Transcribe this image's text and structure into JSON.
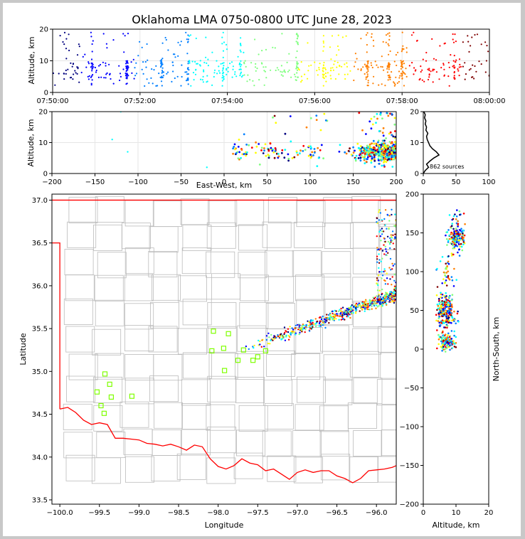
{
  "title": "Oklahoma LMA 0750-0800 UTC June 28, 2023",
  "colormap": [
    "#00007f",
    "#0000ff",
    "#007fff",
    "#00ffff",
    "#7fff7f",
    "#ffff00",
    "#ff7f00",
    "#ff0000",
    "#7f0000"
  ],
  "station_color": "#7fff00",
  "state_border_color": "#ff0000",
  "county_color": "#bbbbbb",
  "chart_data": [
    {
      "id": "time-altitude",
      "type": "scatter",
      "ylabel": "Altitude, km",
      "xlabel": "",
      "ylim": [
        0,
        20
      ],
      "x_ticks": [
        "07:50:00",
        "07:52:00",
        "07:54:00",
        "07:56:00",
        "07:58:00",
        "08:00:00"
      ],
      "y_ticks": [
        "0",
        "10",
        "20"
      ],
      "x_range": [
        "07:50:00",
        "08:00:00"
      ],
      "color_by": "time",
      "grid": true
    },
    {
      "id": "east-west-altitude",
      "type": "scatter",
      "xlabel": "East-West, km",
      "ylabel": "Altitude, km",
      "xlim": [
        -200,
        200
      ],
      "ylim": [
        0,
        20
      ],
      "x_ticks": [
        "−200",
        "−150",
        "−100",
        "−50",
        "0",
        "50",
        "100",
        "150",
        "200"
      ],
      "y_ticks": [
        "0",
        "10",
        "20"
      ],
      "grid": true
    },
    {
      "id": "altitude-histogram",
      "type": "line",
      "xlim": [
        0,
        100
      ],
      "ylim": [
        0,
        20
      ],
      "x_ticks": [
        "0",
        "50",
        "100"
      ],
      "y_ticks": [
        "0",
        "10",
        "20"
      ],
      "annotation": "862 sources",
      "grid": true
    },
    {
      "id": "plan-view",
      "type": "scatter",
      "xlabel": "Longitude",
      "ylabel": "Latitude",
      "xlim": [
        -100.1,
        -95.75
      ],
      "ylim": [
        33.45,
        37.07
      ],
      "x_ticks": [
        "−100.0",
        "−99.5",
        "−99.0",
        "−98.5",
        "−98.0",
        "−97.5",
        "−97.0",
        "−96.5",
        "−96.0"
      ],
      "y_ticks": [
        "33.5",
        "34.0",
        "34.5",
        "35.0",
        "35.5",
        "36.0",
        "36.5",
        "37.0"
      ],
      "stations": [
        [
          -99.43,
          34.97
        ],
        [
          -99.53,
          34.76
        ],
        [
          -99.37,
          34.85
        ],
        [
          -99.35,
          34.7
        ],
        [
          -99.48,
          34.6
        ],
        [
          -99.44,
          34.51
        ],
        [
          -99.09,
          34.71
        ],
        [
          -98.06,
          35.47
        ],
        [
          -97.87,
          35.44
        ],
        [
          -98.08,
          35.24
        ],
        [
          -97.93,
          35.27
        ],
        [
          -97.92,
          35.01
        ],
        [
          -97.68,
          35.25
        ],
        [
          -97.75,
          35.13
        ],
        [
          -97.56,
          35.13
        ],
        [
          -97.5,
          35.17
        ],
        [
          -97.4,
          35.24
        ]
      ]
    },
    {
      "id": "north-south-altitude",
      "type": "scatter",
      "xlabel": "Altitude, km",
      "ylabel": "North-South, km",
      "xlim": [
        0,
        20
      ],
      "ylim": [
        -200,
        200
      ],
      "x_ticks": [
        "0",
        "10",
        "20"
      ],
      "y_ticks": [
        "−200",
        "−150",
        "−100",
        "−50",
        "0",
        "50",
        "100",
        "150",
        "200"
      ]
    }
  ]
}
